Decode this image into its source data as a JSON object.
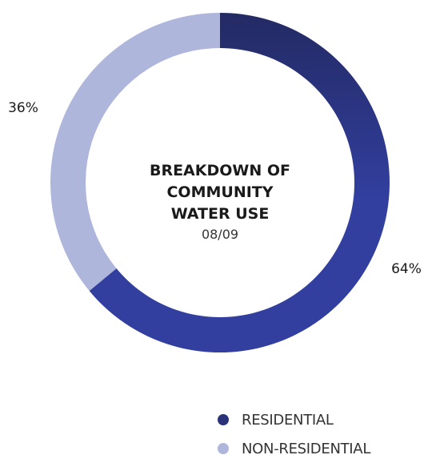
{
  "chart_data": {
    "type": "pie",
    "subtype": "donut",
    "title_lines": [
      "BREAKDOWN OF",
      "COMMUNITY",
      "WATER USE"
    ],
    "subtitle": "08/09",
    "categories": [
      "RESIDENTIAL",
      "NON-RESIDENTIAL"
    ],
    "values": [
      64,
      36
    ],
    "value_labels": [
      "64%",
      "36%"
    ],
    "colors": [
      "#2f3c97",
      "#aeb6dc"
    ],
    "gradient_colors": [
      "#232a63",
      "#323f9f"
    ],
    "legend_position": "bottom-right",
    "start_angle": "top",
    "direction": "clockwise"
  }
}
